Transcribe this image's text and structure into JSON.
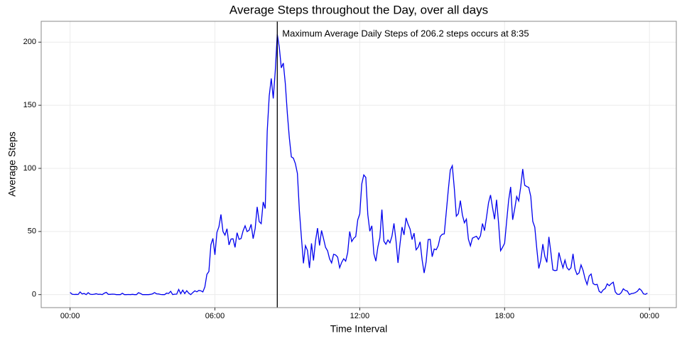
{
  "chart_data": {
    "type": "line",
    "title": "Average Steps throughout the Day, over all days",
    "x_label": "Time Interval",
    "y_label": "Average Steps",
    "annotation": "Maximum Average Daily Steps of  206.2 steps occurs at  8:35",
    "vline": 515,
    "color": "#0000ee",
    "vline_color": "#000000",
    "grid": true,
    "xlim": [
      -71.75,
      1506.75
    ],
    "ylim": [
      -10.31,
      216.5
    ],
    "xticks": [
      {
        "value": 0,
        "label": "00:00"
      },
      {
        "value": 360,
        "label": "06:00"
      },
      {
        "value": 720,
        "label": "12:00"
      },
      {
        "value": 1080,
        "label": "18:00"
      },
      {
        "value": 1440,
        "label": "00:00"
      }
    ],
    "yticks": [
      0,
      50,
      100,
      150,
      200
    ],
    "x": [
      0,
      5,
      10,
      15,
      20,
      25,
      30,
      35,
      40,
      45,
      50,
      55,
      60,
      65,
      70,
      75,
      80,
      85,
      90,
      95,
      100,
      105,
      110,
      115,
      120,
      125,
      130,
      135,
      140,
      145,
      150,
      155,
      160,
      165,
      170,
      175,
      180,
      185,
      190,
      195,
      200,
      205,
      210,
      215,
      220,
      225,
      230,
      235,
      240,
      245,
      250,
      255,
      260,
      265,
      270,
      275,
      280,
      285,
      290,
      295,
      300,
      305,
      310,
      315,
      320,
      325,
      330,
      335,
      340,
      345,
      350,
      355,
      360,
      365,
      370,
      375,
      380,
      385,
      390,
      395,
      400,
      405,
      410,
      415,
      420,
      425,
      430,
      435,
      440,
      445,
      450,
      455,
      460,
      465,
      470,
      475,
      480,
      485,
      490,
      495,
      500,
      505,
      510,
      515,
      520,
      525,
      530,
      535,
      540,
      545,
      550,
      555,
      560,
      565,
      570,
      575,
      580,
      585,
      590,
      595,
      600,
      605,
      610,
      615,
      620,
      625,
      630,
      635,
      640,
      645,
      650,
      655,
      660,
      665,
      670,
      675,
      680,
      685,
      690,
      695,
      700,
      705,
      710,
      715,
      720,
      725,
      730,
      735,
      740,
      745,
      750,
      755,
      760,
      765,
      770,
      775,
      780,
      785,
      790,
      795,
      800,
      805,
      810,
      815,
      820,
      825,
      830,
      835,
      840,
      845,
      850,
      855,
      860,
      865,
      870,
      875,
      880,
      885,
      890,
      895,
      900,
      905,
      910,
      915,
      920,
      925,
      930,
      935,
      940,
      945,
      950,
      955,
      960,
      965,
      970,
      975,
      980,
      985,
      990,
      995,
      1000,
      1005,
      1010,
      1015,
      1020,
      1025,
      1030,
      1035,
      1040,
      1045,
      1050,
      1055,
      1060,
      1065,
      1070,
      1075,
      1080,
      1085,
      1090,
      1095,
      1100,
      1105,
      1110,
      1115,
      1120,
      1125,
      1130,
      1135,
      1140,
      1145,
      1150,
      1155,
      1160,
      1165,
      1170,
      1175,
      1180,
      1185,
      1190,
      1195,
      1200,
      1205,
      1210,
      1215,
      1220,
      1225,
      1230,
      1235,
      1240,
      1245,
      1250,
      1255,
      1260,
      1265,
      1270,
      1275,
      1280,
      1285,
      1290,
      1295,
      1300,
      1305,
      1310,
      1315,
      1320,
      1325,
      1330,
      1335,
      1340,
      1345,
      1350,
      1355,
      1360,
      1365,
      1370,
      1375,
      1380,
      1385,
      1390,
      1395,
      1400,
      1405,
      1410,
      1415,
      1420,
      1425,
      1430,
      1435
    ],
    "values": [
      1.7,
      0.3,
      0.1,
      0.2,
      0.1,
      2.1,
      0.5,
      0.9,
      0,
      1.5,
      0.3,
      0.1,
      0.3,
      0.7,
      0.2,
      0.3,
      0,
      1.1,
      1.8,
      0.2,
      0.2,
      0.4,
      0.3,
      0,
      0,
      0,
      1.1,
      0,
      0,
      0.1,
      0,
      0.2,
      0,
      0,
      1.5,
      0.9,
      0,
      0,
      0,
      0,
      0.2,
      0.6,
      1.6,
      0.6,
      0.5,
      0.1,
      0,
      0,
      1.2,
      0.9,
      2.6,
      0,
      0.3,
      0.4,
      4.1,
      0.7,
      3.5,
      0.8,
      3.1,
      1.1,
      0,
      1.6,
      3,
      2.2,
      3.3,
      3,
      2.1,
      6.1,
      16,
      18.3,
      39.5,
      44.5,
      31.5,
      49.3,
      53.8,
      63.5,
      50,
      47.1,
      52.2,
      39.3,
      44,
      44.2,
      37.4,
      49,
      43.8,
      44.4,
      50.5,
      54.5,
      49.9,
      51,
      55.7,
      44.3,
      52.3,
      69.5,
      57.8,
      56.2,
      73.4,
      68.2,
      129.4,
      157.5,
      171.2,
      155.4,
      177.3,
      206.2,
      195.9,
      179.6,
      183.4,
      167,
      143.5,
      124,
      109.1,
      108.1,
      103.7,
      96,
      66.2,
      45.2,
      24.8,
      38.8,
      35,
      21.1,
      40.6,
      27,
      42.4,
      52.7,
      38.9,
      50.8,
      44.3,
      37.4,
      34.7,
      28.3,
      25.1,
      31.9,
      31.4,
      29.7,
      21.3,
      25.5,
      28.4,
      26.5,
      33.4,
      50,
      42,
      44.6,
      46,
      59.2,
      63.9,
      87.7,
      94.8,
      92.8,
      63.4,
      50.2,
      54.5,
      32.4,
      26.5,
      37.7,
      45.1,
      67.3,
      42.3,
      39.9,
      43.3,
      41,
      46.2,
      56.4,
      42.8,
      25.1,
      40,
      53.5,
      47.3,
      60.8,
      55.8,
      52,
      43.6,
      48.7,
      35.5,
      37.5,
      41.8,
      27.5,
      17.1,
      26.1,
      43.6,
      43.8,
      30,
      36.1,
      35.5,
      38.8,
      46,
      47.8,
      48.1,
      65.3,
      82.9,
      98.7,
      102.1,
      84,
      62.1,
      64.1,
      74.5,
      63.2,
      56.9,
      59.8,
      43.9,
      38.6,
      44.7,
      45.5,
      46.2,
      43.7,
      46.6,
      56.3,
      50.7,
      61.2,
      72.7,
      78.9,
      68.9,
      59.7,
      75.1,
      56.5,
      34.8,
      37.5,
      40.7,
      58,
      74.7,
      85.3,
      59.3,
      67.8,
      77.7,
      74.2,
      85.3,
      99.5,
      86.6,
      85.6,
      84.9,
      77.8,
      58,
      53.4,
      36.3,
      20.7,
      27.4,
      40,
      30.2,
      25.5,
      45.7,
      33.5,
      19.6,
      19,
      19.3,
      33.3,
      26.8,
      21.2,
      27.3,
      21.3,
      19.5,
      21.3,
      32.3,
      20.2,
      15.9,
      17.2,
      23.5,
      19.2,
      12.5,
      8,
      14.7,
      16.3,
      8.7,
      7.8,
      8.1,
      2.6,
      1.5,
      3.7,
      4.8,
      8.5,
      7.1,
      8.7,
      9.8,
      2.2,
      0.3,
      0.1,
      1.6,
      4.6,
      3.3,
      2.8,
      0,
      0.8,
      1,
      1.6,
      2.6,
      4.7,
      3.3,
      0.6,
      0.2,
      1.1
    ]
  }
}
